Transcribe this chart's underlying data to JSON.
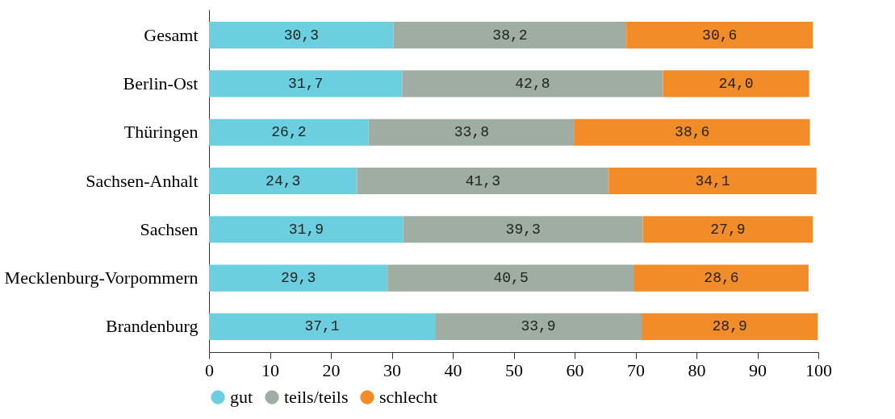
{
  "chart_data": {
    "type": "bar",
    "orientation": "horizontal",
    "stacked": true,
    "categories": [
      "Gesamt",
      "Berlin-Ost",
      "Thüringen",
      "Sachsen-Anhalt",
      "Sachsen",
      "Mecklenburg-Vorpommern",
      "Brandenburg"
    ],
    "series": [
      {
        "name": "gut",
        "color": "#6ccfe0",
        "values": [
          30.3,
          31.7,
          26.2,
          24.3,
          31.9,
          29.3,
          37.1
        ],
        "value_labels": [
          "30,3",
          "31,7",
          "26,2",
          "24,3",
          "31,9",
          "29,3",
          "37,1"
        ]
      },
      {
        "name": "teils/teils",
        "color": "#9fada3",
        "values": [
          38.2,
          42.8,
          33.8,
          41.3,
          39.3,
          40.5,
          33.9
        ],
        "value_labels": [
          "38,2",
          "42,8",
          "33,8",
          "41,3",
          "39,3",
          "40,5",
          "33,9"
        ]
      },
      {
        "name": "schlecht",
        "color": "#f28c28",
        "values": [
          30.6,
          24.0,
          38.6,
          34.1,
          27.9,
          28.6,
          28.9
        ],
        "value_labels": [
          "30,6",
          "24,0",
          "38,6",
          "34,1",
          "27,9",
          "28,6",
          "28,9"
        ]
      }
    ],
    "xlim": [
      0,
      100
    ],
    "xticks": [
      0,
      10,
      20,
      30,
      40,
      50,
      60,
      70,
      80,
      90,
      100
    ],
    "grid": false,
    "legend": "bottom"
  }
}
